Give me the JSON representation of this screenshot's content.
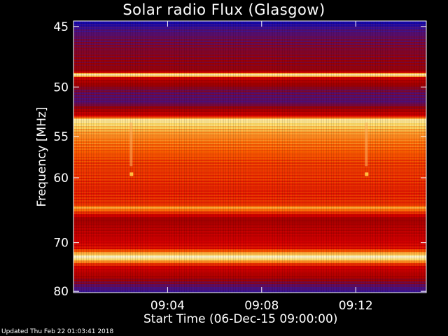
{
  "chart_data": {
    "type": "heatmap",
    "title": "Solar radio Flux (Glasgow)",
    "xlabel": "Start Time (06-Dec-15 09:00:00)",
    "ylabel": "Frequency [MHz]",
    "y_ticks": [
      45,
      50,
      55,
      60,
      70,
      80
    ],
    "x_ticks": [
      "09:04",
      "09:08",
      "09:12"
    ],
    "x_tick_minutes": [
      4,
      8,
      12
    ],
    "xlim_minutes": [
      0,
      15
    ],
    "ylim_mhz": [
      44.6,
      80.3
    ],
    "y_scale": "reciprocal",
    "colormap": [
      "#000033",
      "#0000b4",
      "#3c1496",
      "#a00000",
      "#dc0000",
      "#ff6400",
      "#ffdc64",
      "#ffffff"
    ],
    "intensity_profile": [
      {
        "mhz": 44.6,
        "level": 0.18
      },
      {
        "mhz": 45.2,
        "level": 0.3
      },
      {
        "mhz": 46.5,
        "level": 0.38
      },
      {
        "mhz": 48.6,
        "level": 0.42
      },
      {
        "mhz": 48.9,
        "level": 0.98
      },
      {
        "mhz": 49.2,
        "level": 0.5
      },
      {
        "mhz": 50.5,
        "level": 0.35
      },
      {
        "mhz": 51.4,
        "level": 0.32
      },
      {
        "mhz": 52.8,
        "level": 0.55
      },
      {
        "mhz": 53.2,
        "level": 0.92
      },
      {
        "mhz": 54.5,
        "level": 0.78
      },
      {
        "mhz": 56.0,
        "level": 0.72
      },
      {
        "mhz": 58.0,
        "level": 0.66
      },
      {
        "mhz": 62.0,
        "level": 0.62
      },
      {
        "mhz": 63.8,
        "level": 0.64
      },
      {
        "mhz": 64.2,
        "level": 0.8
      },
      {
        "mhz": 66.0,
        "level": 0.44
      },
      {
        "mhz": 68.0,
        "level": 0.5
      },
      {
        "mhz": 71.0,
        "level": 0.58
      },
      {
        "mhz": 72.7,
        "level": 0.96
      },
      {
        "mhz": 74.5,
        "level": 0.56
      },
      {
        "mhz": 77.0,
        "level": 0.45
      },
      {
        "mhz": 79.0,
        "level": 0.32
      },
      {
        "mhz": 80.3,
        "level": 0.28
      }
    ],
    "spikes_minutes": [
      2.45,
      12.45
    ]
  },
  "footer": "Updated Thu Feb 22 01:03:41 2018"
}
